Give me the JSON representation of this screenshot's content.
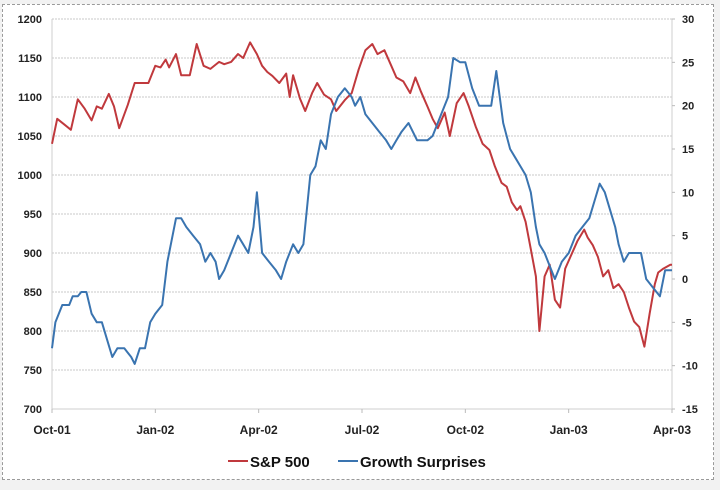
{
  "chart_data": {
    "type": "line",
    "title": "",
    "xlabel": "",
    "ylabel": "",
    "y2label": "",
    "x_ticks": [
      "Oct-01",
      "Jan-02",
      "Apr-02",
      "Jul-02",
      "Oct-02",
      "Jan-03",
      "Apr-03"
    ],
    "x_range_months": [
      0,
      18
    ],
    "ylim": [
      700,
      1200
    ],
    "y_ticks": [
      1200,
      1150,
      1100,
      1050,
      1000,
      950,
      900,
      850,
      800,
      750,
      700
    ],
    "y2lim": [
      -15,
      30
    ],
    "y2_ticks": [
      30,
      25,
      20,
      15,
      10,
      5,
      0,
      -5,
      -10,
      -15
    ],
    "grid": true,
    "legend_position": "bottom",
    "series": [
      {
        "name": "S&P 500",
        "axis": "left",
        "color": "#c0393d",
        "points": [
          [
            0.0,
            1040
          ],
          [
            0.15,
            1072
          ],
          [
            0.35,
            1065
          ],
          [
            0.55,
            1058
          ],
          [
            0.75,
            1097
          ],
          [
            0.95,
            1085
          ],
          [
            1.15,
            1070
          ],
          [
            1.3,
            1088
          ],
          [
            1.45,
            1085
          ],
          [
            1.65,
            1104
          ],
          [
            1.8,
            1088
          ],
          [
            1.95,
            1060
          ],
          [
            2.2,
            1090
          ],
          [
            2.4,
            1118
          ],
          [
            2.6,
            1118
          ],
          [
            2.8,
            1118
          ],
          [
            3.0,
            1140
          ],
          [
            3.15,
            1138
          ],
          [
            3.3,
            1148
          ],
          [
            3.4,
            1138
          ],
          [
            3.6,
            1155
          ],
          [
            3.75,
            1128
          ],
          [
            4.0,
            1128
          ],
          [
            4.2,
            1168
          ],
          [
            4.4,
            1140
          ],
          [
            4.6,
            1136
          ],
          [
            4.85,
            1145
          ],
          [
            5.0,
            1142
          ],
          [
            5.2,
            1145
          ],
          [
            5.4,
            1155
          ],
          [
            5.55,
            1150
          ],
          [
            5.75,
            1170
          ],
          [
            5.95,
            1155
          ],
          [
            6.1,
            1140
          ],
          [
            6.25,
            1132
          ],
          [
            6.4,
            1127
          ],
          [
            6.6,
            1118
          ],
          [
            6.8,
            1130
          ],
          [
            6.9,
            1100
          ],
          [
            7.0,
            1128
          ],
          [
            7.2,
            1098
          ],
          [
            7.35,
            1082
          ],
          [
            7.55,
            1105
          ],
          [
            7.7,
            1118
          ],
          [
            7.9,
            1103
          ],
          [
            8.1,
            1097
          ],
          [
            8.25,
            1082
          ],
          [
            8.5,
            1096
          ],
          [
            8.7,
            1105
          ],
          [
            8.9,
            1135
          ],
          [
            9.1,
            1160
          ],
          [
            9.3,
            1168
          ],
          [
            9.45,
            1155
          ],
          [
            9.65,
            1160
          ],
          [
            9.85,
            1140
          ],
          [
            10.0,
            1125
          ],
          [
            10.2,
            1120
          ],
          [
            10.4,
            1105
          ],
          [
            10.55,
            1125
          ],
          [
            10.7,
            1108
          ],
          [
            10.9,
            1088
          ],
          [
            11.05,
            1072
          ],
          [
            11.2,
            1060
          ],
          [
            11.4,
            1080
          ],
          [
            11.55,
            1050
          ],
          [
            11.75,
            1092
          ],
          [
            11.95,
            1105
          ],
          [
            12.1,
            1088
          ],
          [
            12.3,
            1062
          ],
          [
            12.5,
            1040
          ],
          [
            12.7,
            1032
          ],
          [
            12.85,
            1012
          ],
          [
            13.05,
            990
          ],
          [
            13.2,
            985
          ],
          [
            13.35,
            965
          ],
          [
            13.5,
            955
          ],
          [
            13.6,
            960
          ],
          [
            13.75,
            940
          ],
          [
            13.9,
            905
          ],
          [
            14.05,
            870
          ],
          [
            14.15,
            800
          ],
          [
            14.3,
            870
          ],
          [
            14.45,
            885
          ],
          [
            14.6,
            840
          ],
          [
            14.75,
            830
          ],
          [
            14.9,
            880
          ],
          [
            15.05,
            895
          ],
          [
            15.25,
            915
          ],
          [
            15.45,
            930
          ],
          [
            15.55,
            920
          ],
          [
            15.7,
            910
          ],
          [
            15.85,
            895
          ],
          [
            16.0,
            870
          ],
          [
            16.15,
            878
          ],
          [
            16.3,
            855
          ],
          [
            16.45,
            860
          ],
          [
            16.6,
            850
          ],
          [
            16.75,
            830
          ],
          [
            16.9,
            812
          ],
          [
            17.05,
            805
          ],
          [
            17.2,
            780
          ],
          [
            17.35,
            822
          ],
          [
            17.5,
            860
          ],
          [
            17.6,
            875
          ],
          [
            17.75,
            880
          ],
          [
            17.95,
            885
          ],
          [
            18.0,
            885
          ]
        ]
      },
      {
        "name": "Growth Surprises",
        "axis": "right",
        "color": "#3a74b0",
        "points": [
          [
            0.0,
            -8
          ],
          [
            0.1,
            -5
          ],
          [
            0.3,
            -3
          ],
          [
            0.5,
            -3
          ],
          [
            0.6,
            -2
          ],
          [
            0.75,
            -2
          ],
          [
            0.85,
            -1.5
          ],
          [
            1.0,
            -1.5
          ],
          [
            1.15,
            -4
          ],
          [
            1.3,
            -5
          ],
          [
            1.45,
            -5
          ],
          [
            1.6,
            -7
          ],
          [
            1.75,
            -9
          ],
          [
            1.9,
            -8
          ],
          [
            2.1,
            -8
          ],
          [
            2.3,
            -9
          ],
          [
            2.4,
            -9.8
          ],
          [
            2.55,
            -8
          ],
          [
            2.7,
            -8
          ],
          [
            2.85,
            -5
          ],
          [
            3.0,
            -4
          ],
          [
            3.2,
            -3
          ],
          [
            3.35,
            2
          ],
          [
            3.6,
            7
          ],
          [
            3.75,
            7
          ],
          [
            3.9,
            6
          ],
          [
            4.1,
            5
          ],
          [
            4.3,
            4
          ],
          [
            4.45,
            2
          ],
          [
            4.6,
            3
          ],
          [
            4.75,
            2
          ],
          [
            4.85,
            0
          ],
          [
            5.0,
            1
          ],
          [
            5.2,
            3
          ],
          [
            5.4,
            5
          ],
          [
            5.55,
            4
          ],
          [
            5.7,
            3
          ],
          [
            5.85,
            6
          ],
          [
            5.95,
            10
          ],
          [
            6.1,
            3
          ],
          [
            6.3,
            2
          ],
          [
            6.5,
            1
          ],
          [
            6.65,
            0
          ],
          [
            6.8,
            2
          ],
          [
            7.0,
            4
          ],
          [
            7.15,
            3
          ],
          [
            7.3,
            4
          ],
          [
            7.5,
            12
          ],
          [
            7.65,
            13
          ],
          [
            7.8,
            16
          ],
          [
            7.95,
            15
          ],
          [
            8.1,
            19
          ],
          [
            8.3,
            21
          ],
          [
            8.5,
            22
          ],
          [
            8.7,
            21
          ],
          [
            8.8,
            20
          ],
          [
            8.95,
            21
          ],
          [
            9.1,
            19
          ],
          [
            9.3,
            18
          ],
          [
            9.5,
            17
          ],
          [
            9.7,
            16
          ],
          [
            9.85,
            15
          ],
          [
            10.0,
            16
          ],
          [
            10.15,
            17
          ],
          [
            10.35,
            18
          ],
          [
            10.6,
            16
          ],
          [
            10.75,
            16
          ],
          [
            10.9,
            16
          ],
          [
            11.05,
            16.5
          ],
          [
            11.3,
            19
          ],
          [
            11.5,
            21
          ],
          [
            11.65,
            25.5
          ],
          [
            11.85,
            25
          ],
          [
            12.0,
            25
          ],
          [
            12.2,
            22
          ],
          [
            12.4,
            20
          ],
          [
            12.6,
            20
          ],
          [
            12.75,
            20
          ],
          [
            12.9,
            24
          ],
          [
            13.1,
            18
          ],
          [
            13.3,
            15
          ],
          [
            13.45,
            14
          ],
          [
            13.6,
            13
          ],
          [
            13.75,
            12
          ],
          [
            13.9,
            10
          ],
          [
            14.05,
            6
          ],
          [
            14.15,
            4
          ],
          [
            14.3,
            3
          ],
          [
            14.5,
            1
          ],
          [
            14.6,
            0
          ],
          [
            14.8,
            2
          ],
          [
            15.0,
            3
          ],
          [
            15.2,
            5
          ],
          [
            15.4,
            6
          ],
          [
            15.6,
            7
          ],
          [
            15.75,
            9
          ],
          [
            15.9,
            11
          ],
          [
            16.05,
            10
          ],
          [
            16.2,
            8
          ],
          [
            16.35,
            6
          ],
          [
            16.45,
            4
          ],
          [
            16.6,
            2
          ],
          [
            16.75,
            3
          ],
          [
            16.9,
            3
          ],
          [
            17.1,
            3
          ],
          [
            17.25,
            0
          ],
          [
            17.45,
            -1
          ],
          [
            17.65,
            -2
          ],
          [
            17.8,
            1
          ],
          [
            17.95,
            1
          ],
          [
            18.0,
            1
          ]
        ]
      }
    ]
  },
  "legend": {
    "items": [
      {
        "label": "S&P 500",
        "color": "#c0393d"
      },
      {
        "label": "Growth Surprises",
        "color": "#3a74b0"
      }
    ]
  }
}
